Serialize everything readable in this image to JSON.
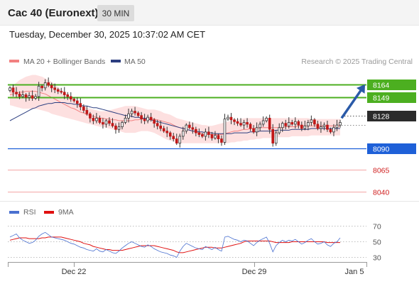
{
  "header": {
    "title": "Cac 40 (Euronext)",
    "timeframe": "30 MIN"
  },
  "datetime": "Tuesday, December 30, 2025 10:37:02 AM CET",
  "copyright": "Research © 2025 Trading Central",
  "colors": {
    "up_candle": "#ffffff",
    "down_candle": "#c01818",
    "bollinger_fill": "#fde0e0",
    "ma20": "#f28080",
    "ma50": "#2c3e80",
    "resistance": "#4caf20",
    "support": "#1e60d8",
    "pivot_label": "#333333",
    "target": "#e06060",
    "rsi_line": "#4a70d0",
    "rsi_ma": "#e01010",
    "arrow": "#2a5aa8"
  },
  "chart_data": [
    {
      "type": "candlestick",
      "title": "",
      "legend": [
        {
          "name": "MA 20 + Bollinger Bands",
          "color": "#f28080"
        },
        {
          "name": "MA 50",
          "color": "#2c3e80"
        }
      ],
      "legend_placement": "top-left",
      "ylim": [
        8030,
        8182
      ],
      "x_ticks": [
        "Dec 22",
        "Dec 29",
        "Jan 5"
      ],
      "levels": [
        {
          "value": 8164,
          "label": "8164",
          "kind": "resistance"
        },
        {
          "value": 8149,
          "label": "8149",
          "kind": "resistance"
        },
        {
          "value": 8128,
          "label": "8128",
          "kind": "pivot"
        },
        {
          "value": 8090,
          "label": "8090",
          "kind": "support"
        },
        {
          "value": 8065,
          "label": "8065",
          "kind": "target"
        },
        {
          "value": 8040,
          "label": "8040",
          "kind": "target"
        }
      ],
      "arrow": {
        "from": 8125,
        "to": 8164,
        "direction": "up"
      },
      "close": [
        8160,
        8155,
        8153,
        8150,
        8152,
        8149,
        8151,
        8148,
        8150,
        8162,
        8160,
        8166,
        8163,
        8160,
        8158,
        8156,
        8155,
        8152,
        8150,
        8147,
        8145,
        8142,
        8138,
        8134,
        8130,
        8125,
        8122,
        8125,
        8120,
        8118,
        8122,
        8119,
        8116,
        8112,
        8115,
        8120,
        8125,
        8130,
        8133,
        8131,
        8128,
        8124,
        8122,
        8126,
        8123,
        8119,
        8116,
        8113,
        8110,
        8108,
        8104,
        8101,
        8096,
        8104,
        8110,
        8117,
        8114,
        8112,
        8108,
        8106,
        8104,
        8109,
        8106,
        8102,
        8105,
        8101,
        8097,
        8124,
        8126,
        8123,
        8121,
        8119,
        8117,
        8120,
        8118,
        8113,
        8109,
        8114,
        8118,
        8122,
        8125,
        8112,
        8096,
        8108,
        8114,
        8119,
        8116,
        8120,
        8118,
        8121,
        8117,
        8113,
        8116,
        8120,
        8123,
        8118,
        8113,
        8115,
        8117,
        8112,
        8109,
        8114,
        8117,
        8120
      ],
      "ma20": [
        8152,
        8153,
        8154,
        8155,
        8155,
        8156,
        8156,
        8156,
        8156,
        8155,
        8154,
        8153,
        8151,
        8149,
        8147,
        8145,
        8143,
        8141,
        8139,
        8137,
        8136,
        8134,
        8132,
        8131,
        8129,
        8128,
        8127,
        8126,
        8125,
        8125,
        8124,
        8124,
        8123,
        8123,
        8122,
        8122,
        8122,
        8122,
        8122,
        8123,
        8123,
        8124,
        8124,
        8124,
        8124,
        8124,
        8123,
        8122,
        8121,
        8120,
        8119,
        8117,
        8115,
        8114,
        8113,
        8112,
        8111,
        8110,
        8109,
        8108,
        8107,
        8106,
        8106,
        8106,
        8106,
        8106,
        8106,
        8107,
        8108,
        8109,
        8110,
        8110,
        8111,
        8112,
        8112,
        8113,
        8113,
        8113,
        8114,
        8114,
        8114,
        8114,
        8114,
        8114,
        8114,
        8114,
        8115,
        8115,
        8115,
        8115,
        8116,
        8116,
        8116,
        8116,
        8116,
        8116,
        8116,
        8116,
        8116,
        8116,
        8116,
        8116,
        8116,
        8116
      ],
      "ma50": [
        8122,
        8124,
        8126,
        8128,
        8130,
        8132,
        8134,
        8136,
        8137,
        8139,
        8140,
        8141,
        8142,
        8142,
        8143,
        8143,
        8143,
        8143,
        8142,
        8142,
        8141,
        8141,
        8140,
        8139,
        8139,
        8138,
        8137,
        8137,
        8136,
        8135,
        8134,
        8133,
        8132,
        8131,
        8130,
        8129,
        8128,
        8128,
        8127,
        8126,
        8126,
        8125,
        8125,
        8124,
        8123,
        8122,
        8121,
        8120,
        8119,
        8118,
        8117,
        8116,
        8115,
        8114,
        8113,
        8112,
        8111,
        8110,
        8110,
        8109,
        8109,
        8108,
        8108,
        8108,
        8107,
        8107,
        8107,
        8107,
        8107,
        8107,
        8108,
        8108,
        8108,
        8108,
        8108,
        8109,
        8109,
        8109,
        8110,
        8110,
        8110,
        8110,
        8110,
        8111,
        8111,
        8111,
        8111,
        8111,
        8112,
        8112,
        8112,
        8112,
        8112,
        8112,
        8113,
        8113,
        8113,
        8113,
        8113,
        8113,
        8113,
        8113,
        8113,
        8113
      ],
      "bb_upper": [
        8160,
        8163,
        8166,
        8169,
        8171,
        8173,
        8174,
        8175,
        8175,
        8174,
        8173,
        8171,
        8169,
        8167,
        8164,
        8161,
        8158,
        8155,
        8152,
        8149,
        8146,
        8143,
        8141,
        8139,
        8137,
        8136,
        8135,
        8134,
        8133,
        8133,
        8133,
        8134,
        8135,
        8136,
        8137,
        8138,
        8139,
        8139,
        8139,
        8139,
        8138,
        8137,
        8136,
        8135,
        8135,
        8135,
        8134,
        8133,
        8131,
        8130,
        8129,
        8127,
        8125,
        8124,
        8123,
        8122,
        8121,
        8120,
        8119,
        8118,
        8117,
        8117,
        8116,
        8116,
        8117,
        8118,
        8119,
        8120,
        8121,
        8122,
        8123,
        8124,
        8124,
        8125,
        8125,
        8125,
        8125,
        8125,
        8125,
        8125,
        8125,
        8125,
        8125,
        8125,
        8125,
        8125,
        8125,
        8125,
        8125,
        8125,
        8125,
        8125,
        8125,
        8125,
        8124,
        8124,
        8124,
        8124,
        8124,
        8124,
        8124,
        8124,
        8124,
        8124
      ],
      "bb_lower": [
        8140,
        8139,
        8138,
        8137,
        8136,
        8136,
        8136,
        8136,
        8136,
        8135,
        8134,
        8133,
        8132,
        8130,
        8129,
        8128,
        8127,
        8126,
        8125,
        8124,
        8123,
        8122,
        8121,
        8120,
        8119,
        8118,
        8117,
        8116,
        8115,
        8115,
        8114,
        8113,
        8112,
        8111,
        8110,
        8109,
        8108,
        8108,
        8108,
        8108,
        8109,
        8110,
        8110,
        8110,
        8109,
        8108,
        8106,
        8104,
        8102,
        8100,
        8099,
        8098,
        8097,
        8096,
        8096,
        8096,
        8096,
        8096,
        8096,
        8096,
        8096,
        8096,
        8096,
        8096,
        8096,
        8096,
        8096,
        8096,
        8096,
        8097,
        8097,
        8098,
        8098,
        8099,
        8099,
        8100,
        8100,
        8101,
        8101,
        8102,
        8102,
        8102,
        8102,
        8103,
        8103,
        8103,
        8103,
        8103,
        8104,
        8104,
        8104,
        8104,
        8104,
        8104,
        8105,
        8105,
        8105,
        8105,
        8105,
        8105,
        8105,
        8105,
        8105,
        8105
      ]
    },
    {
      "type": "line",
      "title": "",
      "legend": [
        {
          "name": "RSI",
          "color": "#4a70d0"
        },
        {
          "name": "9MA",
          "color": "#e01010"
        }
      ],
      "legend_placement": "top-left",
      "ylim": [
        25,
        75
      ],
      "y_ticks": [
        70,
        50,
        30
      ],
      "guide_lines": [
        70,
        50,
        30
      ],
      "series": [
        {
          "name": "RSI",
          "values": [
            56,
            58,
            60,
            55,
            52,
            50,
            48,
            49,
            52,
            57,
            60,
            62,
            59,
            56,
            55,
            54,
            53,
            52,
            50,
            48,
            47,
            45,
            43,
            42,
            40,
            39,
            38,
            41,
            38,
            37,
            40,
            38,
            36,
            35,
            38,
            42,
            45,
            48,
            50,
            48,
            46,
            44,
            43,
            46,
            44,
            41,
            39,
            37,
            36,
            35,
            33,
            32,
            30,
            38,
            44,
            48,
            46,
            44,
            42,
            41,
            40,
            44,
            42,
            40,
            43,
            40,
            38,
            56,
            57,
            55,
            53,
            52,
            50,
            52,
            51,
            48,
            45,
            49,
            52,
            54,
            56,
            48,
            37,
            45,
            49,
            52,
            50,
            52,
            51,
            53,
            50,
            47,
            49,
            52,
            54,
            50,
            47,
            48,
            50,
            46,
            44,
            48,
            50,
            55
          ]
        },
        {
          "name": "9MA",
          "values": [
            52,
            53,
            54,
            55,
            55,
            55,
            54,
            54,
            54,
            54,
            55,
            55,
            56,
            56,
            56,
            56,
            56,
            55,
            54,
            53,
            52,
            51,
            50,
            48,
            47,
            46,
            44,
            43,
            42,
            41,
            40,
            40,
            39,
            39,
            39,
            39,
            40,
            41,
            42,
            43,
            44,
            45,
            45,
            45,
            45,
            45,
            44,
            43,
            42,
            41,
            40,
            39,
            37,
            36,
            36,
            37,
            38,
            39,
            40,
            41,
            42,
            43,
            43,
            43,
            42,
            42,
            42,
            43,
            44,
            45,
            46,
            47,
            48,
            50,
            51,
            51,
            51,
            51,
            51,
            51,
            51,
            51,
            50,
            49,
            49,
            49,
            49,
            49,
            50,
            50,
            50,
            50,
            50,
            50,
            50,
            50,
            50,
            50,
            50,
            49,
            49,
            49,
            49,
            49
          ]
        }
      ]
    }
  ]
}
